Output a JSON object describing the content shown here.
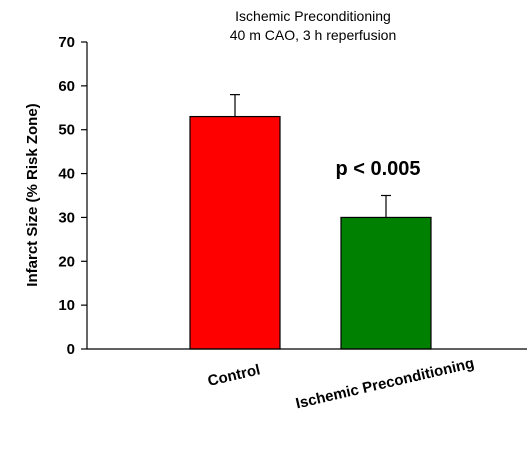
{
  "chart_data": {
    "type": "bar",
    "title_lines": [
      "Ischemic Preconditioning",
      "40 m CAO, 3 h reperfusion"
    ],
    "ylabel": "Infarct Size (% Risk Zone)",
    "xlabel": "",
    "ylim": [
      0,
      70
    ],
    "yticks": [
      0,
      10,
      20,
      30,
      40,
      50,
      60,
      70
    ],
    "categories": [
      "Control",
      "Ischemic Preconditioning"
    ],
    "values": [
      53,
      30
    ],
    "error_upper": [
      5,
      5
    ],
    "colors": [
      "#ff0000",
      "#008000"
    ],
    "annotation": "p < 0.005",
    "grid": false,
    "legend": "none"
  }
}
